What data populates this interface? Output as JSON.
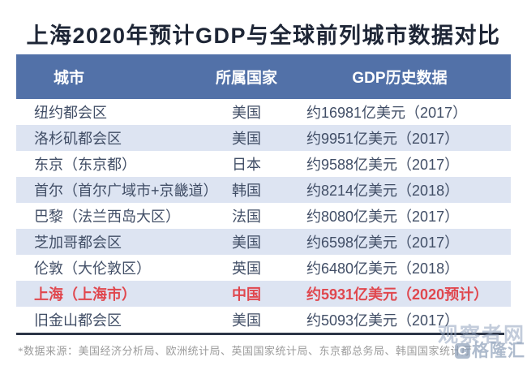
{
  "title": "上海2020年预计GDP与全球前列城市数据对比",
  "table": {
    "headers": [
      "城市",
      "所属国家",
      "GDP历史数据"
    ],
    "rows": [
      {
        "city": "纽约都会区",
        "country": "美国",
        "gdp": "约16981亿美元（2017）",
        "highlight": false
      },
      {
        "city": "洛杉矶都会区",
        "country": "美国",
        "gdp": "约9951亿美元（2017）",
        "highlight": false
      },
      {
        "city": "东京（东京都）",
        "country": "日本",
        "gdp": "约9588亿美元（2017）",
        "highlight": false
      },
      {
        "city": "首尔（首尔广域市+京畿道）",
        "country": "韩国",
        "gdp": "约8214亿美元（2018）",
        "highlight": false
      },
      {
        "city": "巴黎（法兰西岛大区）",
        "country": "法国",
        "gdp": "约8080亿美元（2017）",
        "highlight": false
      },
      {
        "city": "芝加哥都会区",
        "country": "美国",
        "gdp": "约6598亿美元（2017）",
        "highlight": false
      },
      {
        "city": "伦敦（大伦敦区）",
        "country": "英国",
        "gdp": "约6480亿美元（2018）",
        "highlight": false
      },
      {
        "city": "上海（上海市）",
        "country": "中国",
        "gdp": "约5931亿美元（2020预计）",
        "highlight": true
      },
      {
        "city": "旧金山都会区",
        "country": "美国",
        "gdp": "约5093亿美元（2017）",
        "highlight": false
      }
    ]
  },
  "footnote": "*数据来源：美国经济分析局、欧洲统计局、英国国家统计局、东京都总务局、韩国国家统计厅",
  "watermark": {
    "line1": "观察者网",
    "logo": "C",
    "line2": "格隆汇"
  },
  "colors": {
    "header_bg": "#5271a8",
    "alt_row_bg": "#dde4f2",
    "body_text": "#414e66",
    "title_text": "#1e2636",
    "highlight_text": "#e0474e",
    "bottom_line": "#2c3547",
    "footnote_text": "#9b9b9b"
  },
  "chart_data": {
    "type": "table",
    "title": "上海2020年预计GDP与全球前列城市数据对比",
    "columns": [
      "城市",
      "所属国家",
      "GDP历史数据"
    ],
    "rows": [
      [
        "纽约都会区",
        "美国",
        "约16981亿美元（2017）"
      ],
      [
        "洛杉矶都会区",
        "美国",
        "约9951亿美元（2017）"
      ],
      [
        "东京（东京都）",
        "日本",
        "约9588亿美元（2017）"
      ],
      [
        "首尔（首尔广域市+京畿道）",
        "韩国",
        "约8214亿美元（2018）"
      ],
      [
        "巴黎（法兰西岛大区）",
        "法国",
        "约8080亿美元（2017）"
      ],
      [
        "芝加哥都会区",
        "美国",
        "约6598亿美元（2017）"
      ],
      [
        "伦敦（大伦敦区）",
        "英国",
        "约6480亿美元（2018）"
      ],
      [
        "上海（上海市）",
        "中国",
        "约5931亿美元（2020预计）"
      ],
      [
        "旧金山都会区",
        "美国",
        "约5093亿美元（2017）"
      ]
    ],
    "gdp_values_yi_usd": [
      16981,
      9951,
      9588,
      8214,
      8080,
      6598,
      6480,
      5931,
      5093
    ],
    "gdp_years": [
      "2017",
      "2017",
      "2017",
      "2018",
      "2017",
      "2017",
      "2018",
      "2020预计",
      "2017"
    ],
    "highlighted_row": "上海（上海市）"
  }
}
